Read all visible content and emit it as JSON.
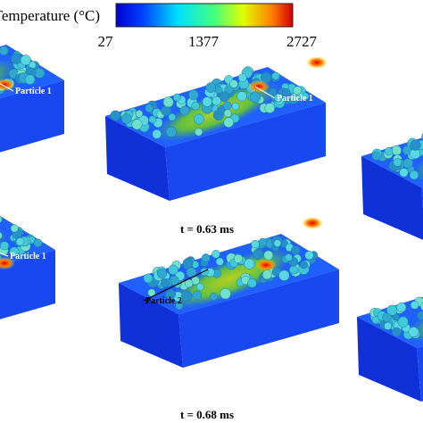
{
  "colorbar": {
    "title": "Temperature (°C)",
    "ticks": [
      "27",
      "1377",
      "2727"
    ]
  },
  "panels": [
    {
      "label": "Particle 1"
    },
    {
      "label": "Particle 1",
      "caption": "t = 0.63 ms"
    },
    {
      "label": "Particle 1"
    },
    {
      "label": "Particle 2",
      "caption": "t = 0.68 ms"
    }
  ]
}
